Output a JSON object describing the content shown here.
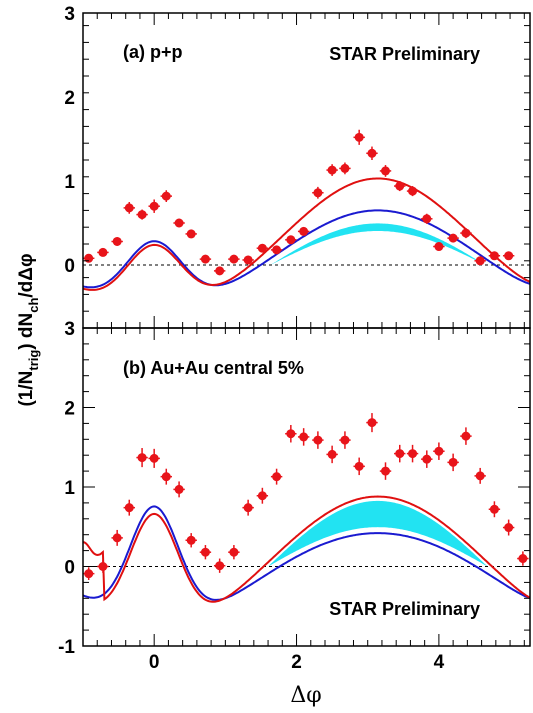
{
  "colors": {
    "data_points": "#e8141a",
    "fit_total": "#e01010",
    "near_side_fit": "#1a1ad0",
    "flow_band": "#22e3f2"
  },
  "figure": {
    "xlabel": "Δφ",
    "ylabel_parts": [
      "(1/N",
      "trig",
      ")  dN",
      "ch",
      "/dΔφ"
    ],
    "x_tick_labels": [
      "0",
      "2",
      "4"
    ]
  },
  "chart_data": [
    {
      "type": "scatter",
      "panel_label": "(a) p+p",
      "annotation": "STAR Preliminary",
      "annotation_position": "top-right",
      "xlim": [
        -1.0,
        5.28
      ],
      "ylim": [
        -0.75,
        3
      ],
      "y_tick_labels": [
        "0",
        "1",
        "2",
        "3"
      ],
      "reference_line": 0,
      "points": [
        {
          "x": -0.92,
          "y": 0.08,
          "ex": 0.08,
          "ey": 0.05
        },
        {
          "x": -0.72,
          "y": 0.15,
          "ex": 0.08,
          "ey": 0.05
        },
        {
          "x": -0.52,
          "y": 0.28,
          "ex": 0.08,
          "ey": 0.05
        },
        {
          "x": -0.35,
          "y": 0.68,
          "ex": 0.08,
          "ey": 0.07
        },
        {
          "x": -0.17,
          "y": 0.6,
          "ex": 0.08,
          "ey": 0.06
        },
        {
          "x": 0.0,
          "y": 0.7,
          "ex": 0.08,
          "ey": 0.08
        },
        {
          "x": 0.17,
          "y": 0.82,
          "ex": 0.08,
          "ey": 0.07
        },
        {
          "x": 0.35,
          "y": 0.5,
          "ex": 0.08,
          "ey": 0.05
        },
        {
          "x": 0.52,
          "y": 0.37,
          "ex": 0.08,
          "ey": 0.05
        },
        {
          "x": 0.72,
          "y": 0.07,
          "ex": 0.08,
          "ey": 0.05
        },
        {
          "x": 0.92,
          "y": -0.07,
          "ex": 0.08,
          "ey": 0.05
        },
        {
          "x": 1.12,
          "y": 0.07,
          "ex": 0.08,
          "ey": 0.05
        },
        {
          "x": 1.32,
          "y": 0.06,
          "ex": 0.08,
          "ey": 0.05
        },
        {
          "x": 1.52,
          "y": 0.2,
          "ex": 0.08,
          "ey": 0.05
        },
        {
          "x": 1.72,
          "y": 0.18,
          "ex": 0.08,
          "ey": 0.05
        },
        {
          "x": 1.92,
          "y": 0.3,
          "ex": 0.08,
          "ey": 0.05
        },
        {
          "x": 2.1,
          "y": 0.4,
          "ex": 0.08,
          "ey": 0.05
        },
        {
          "x": 2.3,
          "y": 0.86,
          "ex": 0.08,
          "ey": 0.07
        },
        {
          "x": 2.5,
          "y": 1.13,
          "ex": 0.08,
          "ey": 0.07
        },
        {
          "x": 2.68,
          "y": 1.15,
          "ex": 0.08,
          "ey": 0.07
        },
        {
          "x": 2.88,
          "y": 1.52,
          "ex": 0.08,
          "ey": 0.09
        },
        {
          "x": 3.06,
          "y": 1.33,
          "ex": 0.08,
          "ey": 0.08
        },
        {
          "x": 3.25,
          "y": 1.12,
          "ex": 0.08,
          "ey": 0.07
        },
        {
          "x": 3.45,
          "y": 0.94,
          "ex": 0.08,
          "ey": 0.06
        },
        {
          "x": 3.63,
          "y": 0.88,
          "ex": 0.08,
          "ey": 0.06
        },
        {
          "x": 3.83,
          "y": 0.55,
          "ex": 0.08,
          "ey": 0.06
        },
        {
          "x": 4.0,
          "y": 0.22,
          "ex": 0.08,
          "ey": 0.05
        },
        {
          "x": 4.2,
          "y": 0.32,
          "ex": 0.08,
          "ey": 0.05
        },
        {
          "x": 4.38,
          "y": 0.38,
          "ex": 0.08,
          "ey": 0.06
        },
        {
          "x": 4.58,
          "y": 0.05,
          "ex": 0.08,
          "ey": 0.05
        },
        {
          "x": 4.78,
          "y": 0.11,
          "ex": 0.08,
          "ey": 0.05
        },
        {
          "x": 4.98,
          "y": 0.11,
          "ex": 0.08,
          "ey": 0.05
        }
      ],
      "curves": {
        "near_gauss": {
          "a": 0.79,
          "sigma": 0.4
        },
        "total_away": {
          "amp": 1.06,
          "cos_amp": 0.53,
          "const": -0.03
        },
        "flow_away": {
          "amp": 0.68,
          "cos_amp": 0.48,
          "const": -0.03
        },
        "band": {
          "upper_scale": 1.1,
          "lower_scale": 0.9,
          "x_start": 1.4
        }
      }
    },
    {
      "type": "scatter",
      "panel_label": "(b) Au+Au central 5%",
      "annotation": "STAR Preliminary",
      "annotation_position": "bottom-right",
      "xlim": [
        -1.0,
        5.28
      ],
      "ylim": [
        -1,
        3
      ],
      "y_tick_labels": [
        "-1",
        "0",
        "1",
        "2",
        "3"
      ],
      "reference_line": 0,
      "points": [
        {
          "x": -0.92,
          "y": -0.09,
          "ex": 0.08,
          "ey": 0.08
        },
        {
          "x": -0.72,
          "y": 0.0,
          "ex": 0.08,
          "ey": 0.08
        },
        {
          "x": -0.52,
          "y": 0.36,
          "ex": 0.08,
          "ey": 0.1
        },
        {
          "x": -0.35,
          "y": 0.74,
          "ex": 0.08,
          "ey": 0.1
        },
        {
          "x": -0.17,
          "y": 1.37,
          "ex": 0.08,
          "ey": 0.12
        },
        {
          "x": 0.0,
          "y": 1.36,
          "ex": 0.08,
          "ey": 0.12
        },
        {
          "x": 0.17,
          "y": 1.13,
          "ex": 0.08,
          "ey": 0.1
        },
        {
          "x": 0.35,
          "y": 0.97,
          "ex": 0.08,
          "ey": 0.1
        },
        {
          "x": 0.52,
          "y": 0.33,
          "ex": 0.08,
          "ey": 0.09
        },
        {
          "x": 0.72,
          "y": 0.18,
          "ex": 0.08,
          "ey": 0.09
        },
        {
          "x": 0.92,
          "y": 0.01,
          "ex": 0.08,
          "ey": 0.09
        },
        {
          "x": 1.12,
          "y": 0.18,
          "ex": 0.08,
          "ey": 0.09
        },
        {
          "x": 1.32,
          "y": 0.74,
          "ex": 0.08,
          "ey": 0.1
        },
        {
          "x": 1.52,
          "y": 0.89,
          "ex": 0.08,
          "ey": 0.1
        },
        {
          "x": 1.72,
          "y": 1.13,
          "ex": 0.08,
          "ey": 0.1
        },
        {
          "x": 1.92,
          "y": 1.67,
          "ex": 0.08,
          "ey": 0.11
        },
        {
          "x": 2.1,
          "y": 1.63,
          "ex": 0.08,
          "ey": 0.11
        },
        {
          "x": 2.3,
          "y": 1.59,
          "ex": 0.08,
          "ey": 0.11
        },
        {
          "x": 2.5,
          "y": 1.41,
          "ex": 0.08,
          "ey": 0.11
        },
        {
          "x": 2.68,
          "y": 1.59,
          "ex": 0.08,
          "ey": 0.11
        },
        {
          "x": 2.88,
          "y": 1.26,
          "ex": 0.08,
          "ey": 0.11
        },
        {
          "x": 3.06,
          "y": 1.81,
          "ex": 0.08,
          "ey": 0.12
        },
        {
          "x": 3.25,
          "y": 1.2,
          "ex": 0.08,
          "ey": 0.11
        },
        {
          "x": 3.45,
          "y": 1.42,
          "ex": 0.08,
          "ey": 0.11
        },
        {
          "x": 3.63,
          "y": 1.42,
          "ex": 0.08,
          "ey": 0.11
        },
        {
          "x": 3.83,
          "y": 1.35,
          "ex": 0.08,
          "ey": 0.11
        },
        {
          "x": 4.0,
          "y": 1.45,
          "ex": 0.08,
          "ey": 0.11
        },
        {
          "x": 4.2,
          "y": 1.31,
          "ex": 0.08,
          "ey": 0.11
        },
        {
          "x": 4.38,
          "y": 1.64,
          "ex": 0.08,
          "ey": 0.11
        },
        {
          "x": 4.58,
          "y": 1.14,
          "ex": 0.08,
          "ey": 0.1
        },
        {
          "x": 4.78,
          "y": 0.72,
          "ex": 0.08,
          "ey": 0.1
        },
        {
          "x": 4.98,
          "y": 0.49,
          "ex": 0.08,
          "ey": 0.1
        },
        {
          "x": 5.18,
          "y": 0.1,
          "ex": 0.08,
          "ey": 0.09
        }
      ],
      "curves": {
        "near_gauss": {
          "a": 1.46,
          "sigma": 0.35
        },
        "total_away": {
          "amp": 0.88,
          "cos_amp": 0.8,
          "const": 0.0
        },
        "flow_away": {
          "amp": 0.44,
          "cos_amp": 0.68,
          "const": -0.02
        },
        "band": {
          "upper_scale": 1.25,
          "lower_scale": 0.75,
          "x_start": 1.1
        },
        "total_near_tail": {
          "x_from": -1.0,
          "y_at_edge": 0.28
        }
      }
    }
  ]
}
